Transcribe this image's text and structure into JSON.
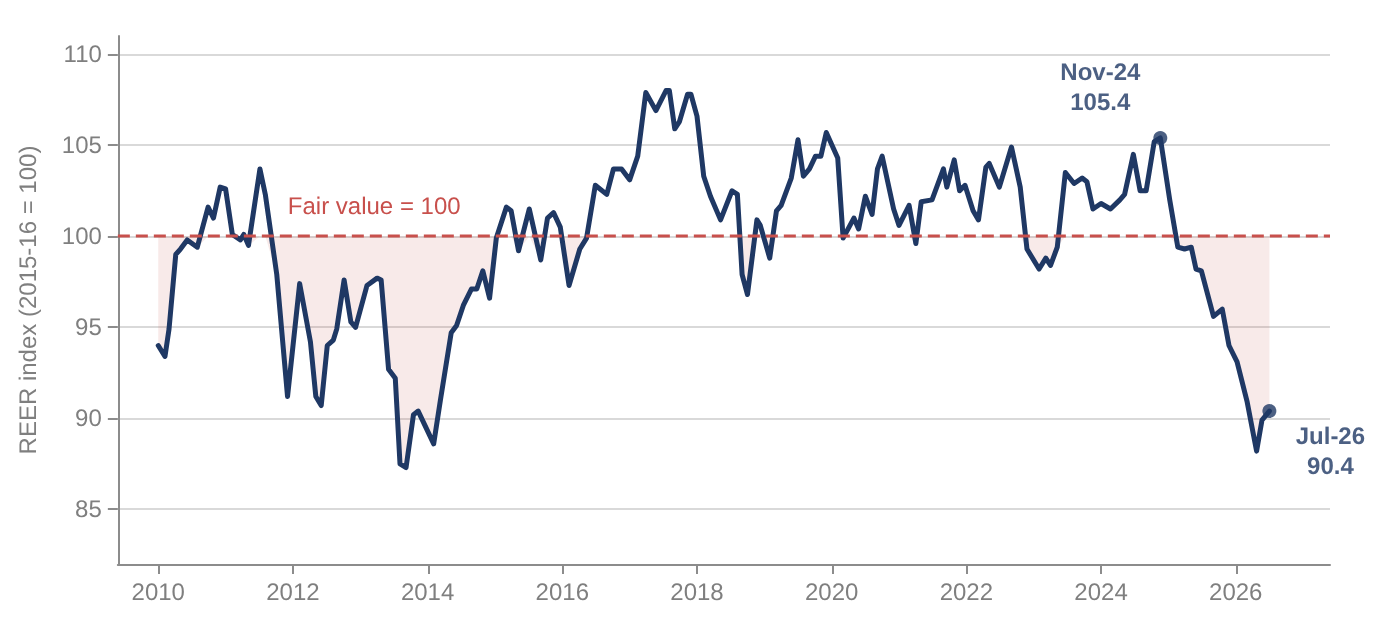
{
  "chart_data": {
    "type": "line",
    "ylabel": "REER index (2015-16 = 100)",
    "x": [
      2010.0,
      2010.1,
      2010.16,
      2010.26,
      2010.33,
      2010.43,
      2010.58,
      2010.74,
      2010.82,
      2010.92,
      2011.0,
      2011.1,
      2011.22,
      2011.27,
      2011.34,
      2011.51,
      2011.59,
      2011.76,
      2011.92,
      2012.1,
      2012.26,
      2012.34,
      2012.42,
      2012.51,
      2012.6,
      2012.65,
      2012.76,
      2012.86,
      2012.93,
      2013.1,
      2013.25,
      2013.31,
      2013.42,
      2013.52,
      2013.59,
      2013.68,
      2013.79,
      2013.86,
      2014.09,
      2014.19,
      2014.35,
      2014.43,
      2014.53,
      2014.65,
      2014.73,
      2014.82,
      2014.92,
      2015.02,
      2015.17,
      2015.24,
      2015.35,
      2015.51,
      2015.68,
      2015.78,
      2015.87,
      2015.97,
      2016.1,
      2016.26,
      2016.36,
      2016.49,
      2016.66,
      2016.76,
      2016.88,
      2017.0,
      2017.12,
      2017.24,
      2017.39,
      2017.54,
      2017.59,
      2017.67,
      2017.74,
      2017.86,
      2017.91,
      2018.0,
      2018.1,
      2018.2,
      2018.35,
      2018.52,
      2018.6,
      2018.67,
      2018.75,
      2018.89,
      2018.94,
      2019.08,
      2019.18,
      2019.25,
      2019.4,
      2019.5,
      2019.58,
      2019.67,
      2019.76,
      2019.84,
      2019.92,
      2020.09,
      2020.17,
      2020.33,
      2020.4,
      2020.5,
      2020.6,
      2020.68,
      2020.75,
      2020.92,
      2021.0,
      2021.15,
      2021.25,
      2021.33,
      2021.49,
      2021.66,
      2021.71,
      2021.82,
      2021.9,
      2021.98,
      2022.1,
      2022.18,
      2022.29,
      2022.34,
      2022.49,
      2022.67,
      2022.8,
      2022.9,
      2023.08,
      2023.18,
      2023.25,
      2023.35,
      2023.47,
      2023.6,
      2023.72,
      2023.79,
      2023.88,
      2024.0,
      2024.14,
      2024.28,
      2024.35,
      2024.48,
      2024.58,
      2024.67,
      2024.79,
      2024.88,
      2025.02,
      2025.14,
      2025.24,
      2025.34,
      2025.41,
      2025.49,
      2025.67,
      2025.8,
      2025.9,
      2026.02,
      2026.17,
      2026.31,
      2026.39,
      2026.5
    ],
    "series": [
      {
        "color": "#1f3864",
        "values": [
          94.0,
          93.4,
          94.9,
          99.0,
          99.3,
          99.8,
          99.4,
          101.6,
          101.0,
          102.7,
          102.6,
          100.1,
          99.8,
          100.1,
          99.5,
          103.7,
          102.3,
          97.9,
          91.2,
          97.4,
          94.2,
          91.2,
          90.7,
          94.0,
          94.3,
          94.9,
          97.6,
          95.3,
          95.0,
          97.3,
          97.7,
          97.6,
          92.7,
          92.2,
          87.5,
          87.3,
          90.2,
          90.4,
          88.6,
          91.0,
          94.7,
          95.1,
          96.2,
          97.1,
          97.1,
          98.1,
          96.6,
          99.9,
          101.6,
          101.4,
          99.2,
          101.5,
          98.7,
          101.0,
          101.3,
          100.5,
          97.3,
          99.3,
          99.9,
          102.8,
          102.3,
          103.7,
          103.7,
          103.1,
          104.4,
          107.9,
          106.9,
          108.0,
          108.0,
          105.9,
          106.3,
          107.8,
          107.8,
          106.6,
          103.3,
          102.2,
          100.9,
          102.5,
          102.3,
          97.9,
          96.8,
          100.9,
          100.6,
          98.8,
          101.4,
          101.7,
          103.2,
          105.3,
          103.3,
          103.7,
          104.4,
          104.4,
          105.7,
          104.3,
          99.9,
          101.0,
          100.4,
          102.2,
          101.2,
          103.7,
          104.4,
          101.5,
          100.6,
          101.7,
          99.6,
          101.9,
          102.0,
          103.7,
          102.7,
          104.2,
          102.5,
          102.8,
          101.4,
          100.9,
          103.8,
          104.0,
          102.7,
          104.9,
          102.7,
          99.3,
          98.2,
          98.8,
          98.4,
          99.4,
          103.5,
          102.9,
          103.2,
          103.0,
          101.5,
          101.8,
          101.5,
          102.0,
          102.3,
          104.5,
          102.5,
          102.5,
          105.2,
          105.4,
          102.0,
          99.4,
          99.3,
          99.4,
          98.2,
          98.1,
          95.6,
          96.0,
          94.0,
          93.1,
          90.9,
          88.2,
          89.9,
          90.4
        ],
        "lower": [
          94.0,
          93.4,
          94.9,
          99.0,
          99.3,
          99.8,
          99.4,
          100,
          100,
          100,
          100,
          100,
          99.8,
          100,
          99.5,
          100,
          100,
          97.9,
          91.2,
          97.4,
          94.2,
          91.2,
          90.7,
          94.0,
          94.3,
          94.9,
          97.6,
          95.3,
          95.0,
          97.3,
          97.7,
          97.6,
          92.7,
          92.2,
          87.5,
          87.3,
          90.2,
          90.4,
          88.6,
          91.0,
          94.7,
          95.1,
          96.2,
          97.1,
          97.1,
          98.1,
          96.6,
          99.9,
          100,
          100,
          99.2,
          100,
          98.7,
          100,
          100,
          100,
          97.3,
          99.3,
          99.9,
          100,
          100,
          100,
          100,
          100,
          100,
          100,
          100,
          100,
          100,
          100,
          100,
          100,
          100,
          100,
          100,
          100,
          100,
          100,
          100,
          97.9,
          96.8,
          100,
          100,
          98.8,
          100,
          100,
          100,
          100,
          100,
          100,
          100,
          100,
          100,
          100,
          99.9,
          100,
          100,
          100,
          100,
          100,
          100,
          100,
          100,
          100,
          99.6,
          100,
          100,
          100,
          100,
          100,
          100,
          100,
          100,
          100,
          100,
          100,
          100,
          100,
          100,
          99.3,
          98.2,
          98.8,
          98.4,
          99.4,
          100,
          100,
          100,
          100,
          100,
          100,
          100,
          100,
          100,
          100,
          100,
          100,
          100,
          100,
          100,
          99.4,
          99.3,
          99.4,
          98.2,
          98.1,
          95.6,
          96.0,
          94.0,
          93.1,
          90.9,
          88.2,
          89.9,
          90.4
        ],
        "upper": [
          100,
          100,
          100,
          100,
          100,
          100,
          100,
          100,
          100,
          100,
          100,
          100,
          100,
          100,
          100,
          100,
          100,
          100,
          100,
          100,
          100,
          100,
          100,
          100,
          100,
          100,
          100,
          100,
          100,
          100,
          100,
          100,
          100,
          100,
          100,
          100,
          100,
          100,
          100,
          100,
          100,
          100,
          100,
          100,
          100,
          100,
          100,
          100,
          100,
          100,
          100,
          100,
          100,
          100,
          100,
          100,
          100,
          100,
          100,
          100,
          100,
          100,
          100,
          100,
          100,
          100,
          100,
          100,
          100,
          100,
          100,
          100,
          100,
          100,
          100,
          100,
          100,
          100,
          100,
          100,
          100,
          100,
          100,
          100,
          100,
          100,
          100,
          100,
          100,
          100,
          100,
          100,
          100,
          100,
          100,
          100,
          100,
          100,
          100,
          100,
          100,
          100,
          100,
          100,
          100,
          100,
          100,
          100,
          100,
          100,
          100,
          100,
          100,
          100,
          100,
          100,
          100,
          100,
          100,
          100,
          100,
          100,
          100,
          100,
          100,
          100,
          100,
          100,
          100,
          100,
          100,
          100,
          100,
          100,
          100,
          100,
          100,
          100,
          100,
          100,
          100,
          100,
          100,
          100,
          100,
          100,
          100,
          100,
          100,
          100,
          100,
          100
        ]
      }
    ],
    "xlim": [
      2009.4,
      2027.4
    ],
    "xticks": [
      2010,
      2012,
      2014,
      2016,
      2018,
      2020,
      2022,
      2024,
      2026
    ],
    "ylim": [
      82,
      111
    ],
    "yticks": [
      85,
      90,
      95,
      100,
      105,
      110
    ],
    "grid": "y",
    "ref_lines": [
      {
        "axis": "y",
        "value": 100,
        "label": "Fair value = 100",
        "color": "#c8504c",
        "line_style": "dashed"
      }
    ],
    "annotations": [
      {
        "text": "Nov-24\n105.4",
        "x": 2024.88,
        "y": 105.4
      },
      {
        "text": "Jul-26\n90.4",
        "x": 2026.5,
        "y": 90.4
      }
    ]
  }
}
